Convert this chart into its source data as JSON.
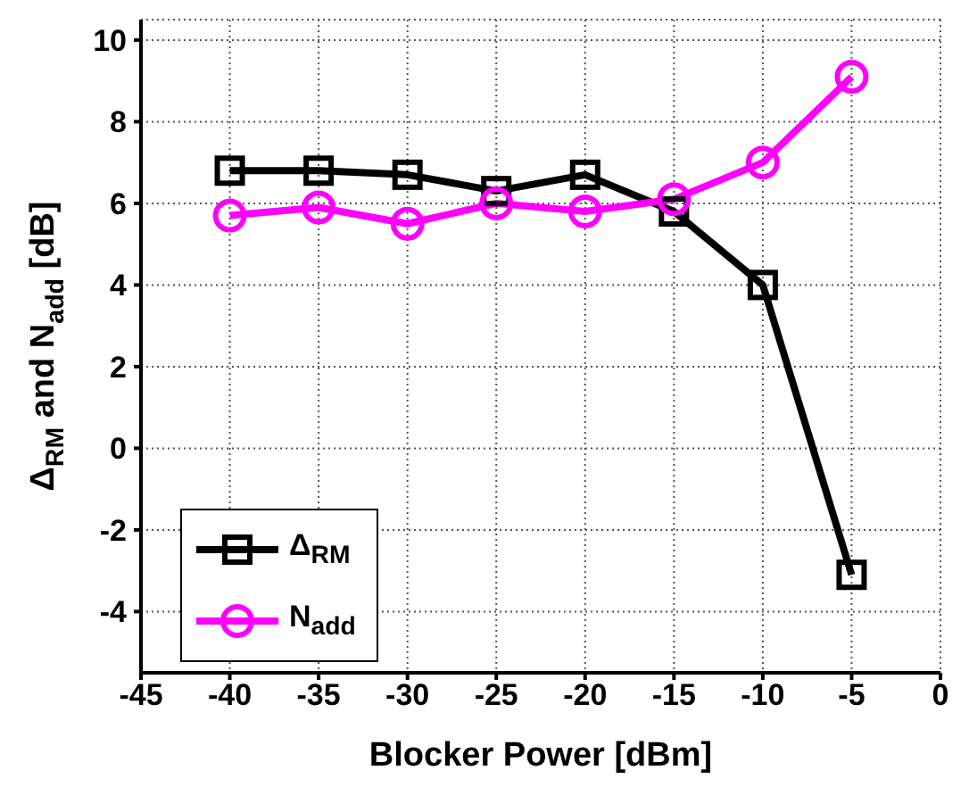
{
  "chart_data": {
    "type": "line",
    "xlabel": "Blocker Power [dBm]",
    "ylabel": "Δ$_{RM}$ and N$_{add}$ [dB]",
    "x": [
      -40,
      -35,
      -30,
      -25,
      -20,
      -15,
      -10,
      -5
    ],
    "series": [
      {
        "name": "Δ$_{RM}$",
        "color": "#000000",
        "marker": "square",
        "values": [
          6.8,
          6.8,
          6.7,
          6.3,
          6.7,
          5.8,
          4.0,
          -3.1
        ]
      },
      {
        "name": "N$_{add}$",
        "color": "#ff00ff",
        "marker": "circle",
        "values": [
          5.7,
          5.9,
          5.5,
          6.0,
          5.8,
          6.1,
          7.0,
          9.1
        ]
      }
    ],
    "xlim": [
      -45,
      0
    ],
    "xticks": [
      -45,
      -40,
      -35,
      -30,
      -25,
      -20,
      -15,
      -10,
      -5,
      0
    ],
    "ylim": [
      -5.5,
      10.5
    ],
    "yticks": [
      -4,
      -2,
      0,
      2,
      4,
      6,
      8,
      10
    ],
    "grid": true,
    "legend": "bottom left",
    "line_style": "solid"
  }
}
